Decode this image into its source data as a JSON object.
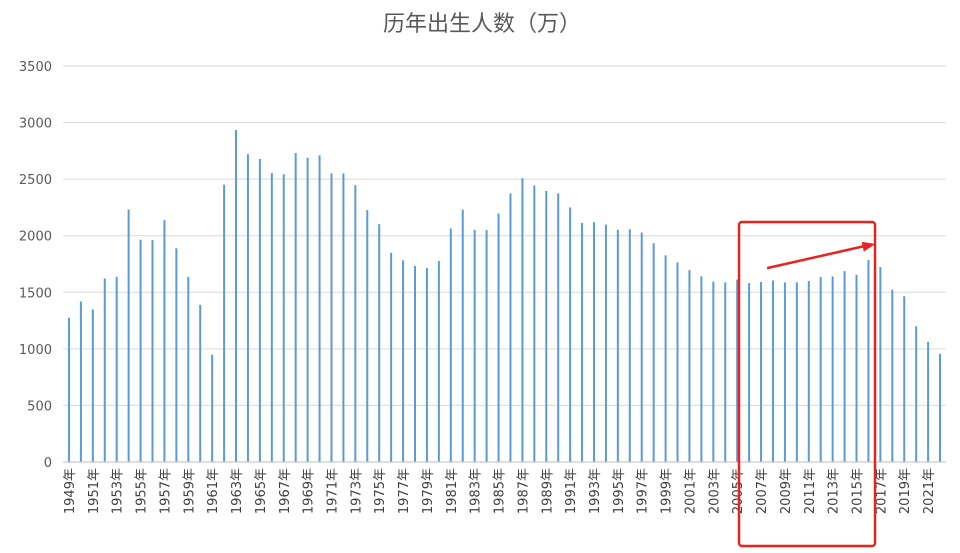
{
  "chart_data": {
    "type": "bar",
    "title": "历年出生人数（万）",
    "xlabel": "",
    "ylabel": "",
    "ylim": [
      0,
      3500
    ],
    "yticks": [
      0,
      500,
      1000,
      1500,
      2000,
      2500,
      3000,
      3500
    ],
    "grid": "horizontal",
    "legend": "none",
    "bar_color": "#5b9bd5",
    "highlight_color": "#e8231f",
    "highlight_range": [
      "2006年",
      "2016年"
    ],
    "arrow_annotation": {
      "from": "2006年",
      "to": "2016年"
    },
    "categories": [
      "1949年",
      "1950年",
      "1951年",
      "1952年",
      "1953年",
      "1954年",
      "1955年",
      "1956年",
      "1957年",
      "1958年",
      "1959年",
      "1960年",
      "1961年",
      "1962年",
      "1963年",
      "1964年",
      "1965年",
      "1966年",
      "1967年",
      "1968年",
      "1969年",
      "1970年",
      "1971年",
      "1972年",
      "1973年",
      "1974年",
      "1975年",
      "1976年",
      "1977年",
      "1978年",
      "1979年",
      "1980年",
      "1981年",
      "1982年",
      "1983年",
      "1984年",
      "1985年",
      "1986年",
      "1987年",
      "1988年",
      "1989年",
      "1990年",
      "1991年",
      "1992年",
      "1993年",
      "1994年",
      "1995年",
      "1996年",
      "1997年",
      "1998年",
      "1999年",
      "2000年",
      "2001年",
      "2002年",
      "2003年",
      "2004年",
      "2005年",
      "2006年",
      "2007年",
      "2008年",
      "2009年",
      "2010年",
      "2011年",
      "2012年",
      "2013年",
      "2014年",
      "2015年",
      "2016年",
      "2017年",
      "2018年",
      "2019年",
      "2020年",
      "2021年",
      "2022年"
    ],
    "tick_labels": [
      "1949年",
      "1951年",
      "1953年",
      "1955年",
      "1957年",
      "1959年",
      "1961年",
      "1963年",
      "1965年",
      "1967年",
      "1969年",
      "1971年",
      "1973年",
      "1975年",
      "1977年",
      "1979年",
      "1981年",
      "1983年",
      "1985年",
      "1987年",
      "1989年",
      "1991年",
      "1993年",
      "1995年",
      "1997年",
      "1999年",
      "2001年",
      "2003年",
      "2005年",
      "2007年",
      "2009年",
      "2011年",
      "2013年",
      "2015年",
      "2017年",
      "2019年",
      "2021年"
    ],
    "values": [
      1275,
      1419,
      1349,
      1622,
      1637,
      2232,
      1965,
      1961,
      2138,
      1889,
      1635,
      1389,
      949,
      2451,
      2934,
      2721,
      2679,
      2554,
      2543,
      2731,
      2690,
      2710,
      2551,
      2550,
      2447,
      2226,
      2102,
      1849,
      1783,
      1733,
      1715,
      1776,
      2064,
      2230,
      2052,
      2050,
      2196,
      2374,
      2508,
      2445,
      2396,
      2374,
      2250,
      2113,
      2120,
      2098,
      2052,
      2057,
      2028,
      1934,
      1827,
      1765,
      1696,
      1641,
      1594,
      1588,
      1612,
      1581,
      1591,
      1604,
      1587,
      1588,
      1600,
      1635,
      1640,
      1687,
      1655,
      1786,
      1723,
      1523,
      1465,
      1200,
      1062,
      956
    ]
  }
}
